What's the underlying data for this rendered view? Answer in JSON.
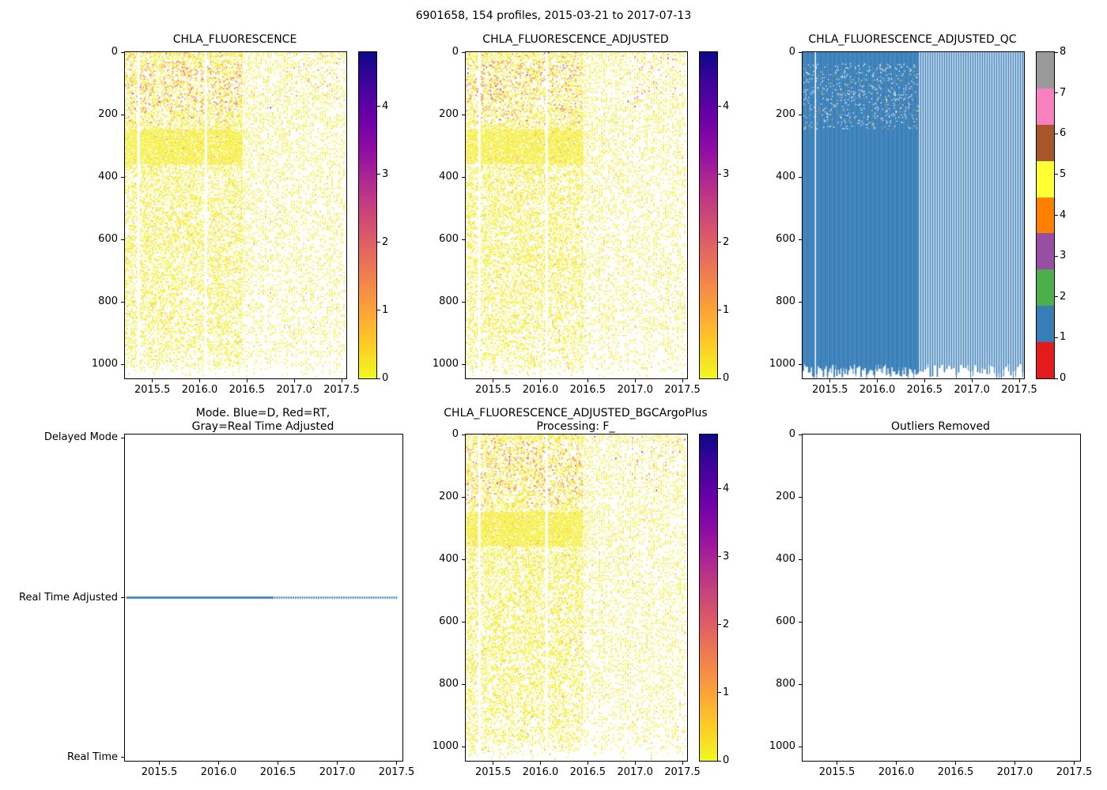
{
  "figure": {
    "suptitle": "6901658, 154 profiles, 2015-03-21 to 2017-07-13",
    "platform": "6901658",
    "n_profiles": 154,
    "date_start": "2015-03-21",
    "date_end": "2017-07-13",
    "background": "#ffffff"
  },
  "colors": {
    "heatmap_palette": [
      {
        "max": 0.35,
        "color": "#f3ef20"
      },
      {
        "max": 0.7,
        "color": "#fdd32b"
      },
      {
        "max": 1.1,
        "color": "#fca636"
      },
      {
        "max": 1.6,
        "color": "#f2844b"
      },
      {
        "max": 2.2,
        "color": "#e16462"
      },
      {
        "max": 3.2,
        "color": "#b12a90"
      },
      {
        "max": 99,
        "color": "#6a00a8"
      }
    ],
    "plasma_r_stops_bottom_to_top": [
      "#f0f921",
      "#fcce25",
      "#fca636",
      "#f2844b",
      "#e16462",
      "#cc4778",
      "#b12a90",
      "#8f0da4",
      "#6a00a8",
      "#41049d",
      "#0d0887"
    ],
    "qc_set1_bottom_to_top": [
      "#e41a1c",
      "#377eb8",
      "#4daf4a",
      "#984ea3",
      "#ff7f00",
      "#ffff33",
      "#a65628",
      "#f781bf",
      "#999999"
    ],
    "qc_fill": "#377eb8",
    "mode_line": "#3f7cb6"
  },
  "chart_data": [
    {
      "id": "chla",
      "type": "profile_heatmap",
      "title": "CHLA_FLUORESCENCE",
      "xlim": [
        2015.21,
        2017.55
      ],
      "ylim_depth": [
        1045,
        0
      ],
      "x_ticks": {
        "values": [
          2015.5,
          2016.0,
          2016.5,
          2017.0,
          2017.5
        ],
        "labels": [
          "2015.5",
          "2016.0",
          "2016.5",
          "2017.0",
          "2017.5"
        ]
      },
      "y_ticks": {
        "values": [
          0,
          200,
          400,
          600,
          800,
          1000
        ],
        "labels": [
          "0",
          "200",
          "400",
          "600",
          "800",
          "1000"
        ]
      },
      "colorbar": {
        "kind": "plasma_r",
        "vmin": 0,
        "vmax": 4.8,
        "ticks": [
          0,
          1,
          2,
          3,
          4
        ],
        "tick_labels": [
          "0",
          "1",
          "2",
          "3",
          "4"
        ]
      },
      "seed": 11,
      "description": "Chlorophyll-a fluorescence vs depth (0-1045 m) for 154 profiles from 2015.2 to 2017.5. Values mostly 0-0.5 (yellow); elevated 0.5-2 (orange) patches in the upper 200 m during 2015 to mid-2016 and again near 2017.0-2017.4; dense yellow band at 250-350 m until mid-2016; profiles become sparser (vertical white striping) after mid-2016; profiles terminate near 1000-1045 m."
    },
    {
      "id": "chla_adj",
      "type": "profile_heatmap",
      "title": "CHLA_FLUORESCENCE_ADJUSTED",
      "xlim": [
        2015.21,
        2017.55
      ],
      "ylim_depth": [
        1045,
        0
      ],
      "x_ticks": {
        "values": [
          2015.5,
          2016.0,
          2016.5,
          2017.0,
          2017.5
        ],
        "labels": [
          "2015.5",
          "2016.0",
          "2016.5",
          "2017.0",
          "2017.5"
        ]
      },
      "y_ticks": {
        "values": [
          0,
          200,
          400,
          600,
          800,
          1000
        ],
        "labels": [
          "0",
          "200",
          "400",
          "600",
          "800",
          "1000"
        ]
      },
      "colorbar": {
        "kind": "plasma_r",
        "vmin": 0,
        "vmax": 4.8,
        "ticks": [
          0,
          1,
          2,
          3,
          4
        ],
        "tick_labels": [
          "0",
          "1",
          "2",
          "3",
          "4"
        ]
      },
      "seed": 23,
      "description": "Adjusted chlorophyll-a fluorescence; same structure as raw field: mostly 0-0.5 (yellow), orange surface patches in upper 200 m before mid-2016, 250-350 m yellow band, sparser vertical striping after mid-2016."
    },
    {
      "id": "qc",
      "type": "qc_heatmap",
      "title": "CHLA_FLUORESCENCE_ADJUSTED_QC",
      "xlim": [
        2015.21,
        2017.55
      ],
      "ylim_depth": [
        1045,
        0
      ],
      "x_ticks": {
        "values": [
          2015.5,
          2016.0,
          2016.5,
          2017.0,
          2017.5
        ],
        "labels": [
          "2015.5",
          "2016.0",
          "2016.5",
          "2017.0",
          "2017.5"
        ]
      },
      "y_ticks": {
        "values": [
          0,
          200,
          400,
          600,
          800,
          1000
        ],
        "labels": [
          "0",
          "200",
          "400",
          "600",
          "800",
          "1000"
        ]
      },
      "colorbar": {
        "kind": "qc_set1",
        "vmin": 0,
        "vmax": 8,
        "ticks": [
          0,
          1,
          2,
          3,
          4,
          5,
          6,
          7,
          8
        ],
        "tick_labels": [
          "0",
          "1",
          "2",
          "3",
          "4",
          "5",
          "6",
          "7",
          "8"
        ]
      },
      "seed": 37,
      "description": "QC flags: nearly all points flagged 1 (blue) over the full 0-1045 m column; solid blue block until mid-2016 with one white gap near 2015.35, then separated blue vertical stripes through 2017.5; ragged profile bottoms near 1000-1050 m; scattered non-1 speckles in the upper 250 m."
    },
    {
      "id": "mode",
      "type": "mode_scatter",
      "title_lines": [
        "Mode. Blue=D, Red=RT,",
        "Gray=Real Time Adjusted"
      ],
      "xlim": [
        2015.21,
        2017.55
      ],
      "ylim": [
        -0.02,
        2.02
      ],
      "x_ticks": {
        "values": [
          2015.5,
          2016.0,
          2016.5,
          2017.0,
          2017.5
        ],
        "labels": [
          "2015.5",
          "2016.0",
          "2016.5",
          "2017.0",
          "2017.5"
        ]
      },
      "y_categories": [
        {
          "label": "Delayed Mode",
          "pos": 2
        },
        {
          "label": "Real Time Adjusted",
          "pos": 1
        },
        {
          "label": "Real Time",
          "pos": 0
        }
      ],
      "series": [
        {
          "name": "profile-mode",
          "category": "Real Time Adjusted",
          "pos": 1,
          "x_start": 2015.22,
          "x_end": 2017.5,
          "dense_until": 2016.45,
          "color": "#3f7cb6"
        }
      ],
      "description": "Data mode of every profile is Real Time Adjusted; markers form a continuous line until about 2016.45, then regularly spaced dots through 2017.5. No Delayed Mode or Real Time profiles."
    },
    {
      "id": "bgc",
      "type": "profile_heatmap",
      "title_lines": [
        "CHLA_FLUORESCENCE_ADJUSTED_BGCArgoPlus",
        "Processing: F_"
      ],
      "xlim": [
        2015.21,
        2017.55
      ],
      "ylim_depth": [
        1045,
        0
      ],
      "x_ticks": {
        "values": [
          2015.5,
          2016.0,
          2016.5,
          2017.0,
          2017.5
        ],
        "labels": [
          "2015.5",
          "2016.0",
          "2016.5",
          "2017.0",
          "2017.5"
        ]
      },
      "y_ticks": {
        "values": [
          0,
          200,
          400,
          600,
          800,
          1000
        ],
        "labels": [
          "0",
          "200",
          "400",
          "600",
          "800",
          "1000"
        ]
      },
      "colorbar": {
        "kind": "plasma_r",
        "vmin": 0,
        "vmax": 4.8,
        "ticks": [
          0,
          1,
          2,
          3,
          4
        ],
        "tick_labels": [
          "0",
          "1",
          "2",
          "3",
          "4"
        ]
      },
      "seed": 51,
      "description": "BGC-Argo-Plus processed adjusted chlorophyll field, visually identical to the adjusted field: mostly 0-0.5 yellow values, orange upper-ocean patches before mid-2016, 250-350 m band, sparser striping afterwards."
    },
    {
      "id": "outliers",
      "type": "empty",
      "title": "Outliers Removed",
      "xlim": [
        2015.21,
        2017.55
      ],
      "ylim_depth": [
        1045,
        0
      ],
      "x_ticks": {
        "values": [
          2015.5,
          2016.0,
          2016.5,
          2017.0,
          2017.5
        ],
        "labels": [
          "2015.5",
          "2016.0",
          "2016.5",
          "2017.0",
          "2017.5"
        ]
      },
      "y_ticks": {
        "values": [
          0,
          200,
          400,
          600,
          800,
          1000
        ],
        "labels": [
          "0",
          "200",
          "400",
          "600",
          "800",
          "1000"
        ]
      },
      "description": "Empty axes - no outliers were removed/plotted."
    }
  ]
}
